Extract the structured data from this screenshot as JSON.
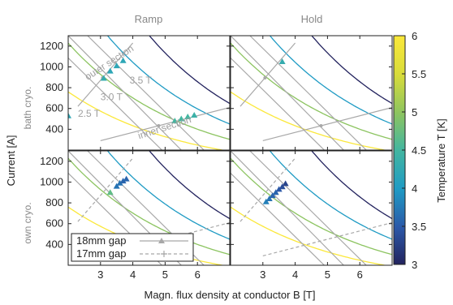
{
  "chart_data": {
    "type": "line",
    "column_titles": [
      "Ramp",
      "Hold"
    ],
    "row_labels": [
      "bath cryo.",
      "own cryo."
    ],
    "xlabel": "Magn. flux density at conductor B [T]",
    "ylabel": "Current [A]",
    "xlim": [
      2,
      7
    ],
    "ylim": [
      200,
      1300
    ],
    "xticks": [
      "3",
      "4",
      "5",
      "6"
    ],
    "yticks": [
      "400",
      "600",
      "800",
      "1000",
      "1200"
    ],
    "colorbar": {
      "label": "Temperature T [K]",
      "range": [
        3,
        6
      ],
      "ticks": [
        "3",
        "3.5",
        "4",
        "4.5",
        "5",
        "5.5",
        "6"
      ],
      "colors": [
        "#23235e",
        "#2b58a8",
        "#1f9bc4",
        "#43b6a0",
        "#8cc460",
        "#e6e02c",
        "#fbe83a"
      ]
    },
    "critical_curves": [
      {
        "temperature": 6.0,
        "a": 1330,
        "b": 0.28
      },
      {
        "temperature": 5.0,
        "a": 2150,
        "b": 0.28
      },
      {
        "temperature": 4.0,
        "a": 3200,
        "b": 0.28
      },
      {
        "temperature": 3.0,
        "a": 4600,
        "b": 0.28
      }
    ],
    "load_lines": [
      {
        "label": "2.5 T",
        "x": [
          1.3,
          4.9
        ],
        "y": [
          1300,
          200
        ]
      },
      {
        "label": "3.0 T",
        "x": [
          2.0,
          5.5
        ],
        "y": [
          1300,
          200
        ]
      },
      {
        "label": "3.5 T",
        "x": [
          2.6,
          6.2
        ],
        "y": [
          1300,
          200
        ]
      }
    ],
    "sections": [
      {
        "label": "outer section",
        "x": [
          2.3,
          4.0
        ],
        "y": [
          620,
          1230
        ]
      },
      {
        "label": "inner section",
        "x": [
          3.0,
          7.0
        ],
        "y": [
          290,
          610
        ]
      }
    ],
    "series": [
      {
        "panel": "bath-ramp",
        "points": [
          {
            "x": 2.0,
            "y": 530,
            "t": 4.2
          },
          {
            "x": 3.1,
            "y": 890,
            "t": 4.3
          },
          {
            "x": 3.3,
            "y": 960,
            "t": 4.2
          },
          {
            "x": 3.5,
            "y": 1010,
            "t": 4.2
          },
          {
            "x": 3.7,
            "y": 1060,
            "t": 4.2
          },
          {
            "x": 5.3,
            "y": 480,
            "t": 4.5
          },
          {
            "x": 5.5,
            "y": 500,
            "t": 4.5
          },
          {
            "x": 5.7,
            "y": 520,
            "t": 4.5
          },
          {
            "x": 5.9,
            "y": 535,
            "t": 4.4
          }
        ]
      },
      {
        "panel": "bath-hold",
        "points": [
          {
            "x": 3.6,
            "y": 1050,
            "t": 4.3
          }
        ]
      },
      {
        "panel": "own-ramp",
        "points": [
          {
            "x": 3.5,
            "y": 960,
            "t": 3.7
          },
          {
            "x": 3.6,
            "y": 990,
            "t": 3.7
          },
          {
            "x": 3.7,
            "y": 1010,
            "t": 3.6
          },
          {
            "x": 3.8,
            "y": 1030,
            "t": 3.6
          },
          {
            "x": 3.3,
            "y": 900,
            "t": 4.7
          }
        ]
      },
      {
        "panel": "own-hold",
        "points": [
          {
            "x": 3.1,
            "y": 810,
            "t": 3.8
          },
          {
            "x": 3.2,
            "y": 840,
            "t": 3.7
          },
          {
            "x": 3.3,
            "y": 870,
            "t": 3.6
          },
          {
            "x": 3.4,
            "y": 900,
            "t": 3.6
          },
          {
            "x": 3.5,
            "y": 930,
            "t": 3.5
          },
          {
            "x": 3.6,
            "y": 955,
            "t": 3.4
          },
          {
            "x": 3.7,
            "y": 985,
            "t": 3.3
          }
        ]
      }
    ],
    "legend": [
      {
        "label": "18mm gap",
        "style": "solid"
      },
      {
        "label": "17mm gap",
        "style": "dashed"
      }
    ],
    "legend_position": "bottom-left"
  }
}
